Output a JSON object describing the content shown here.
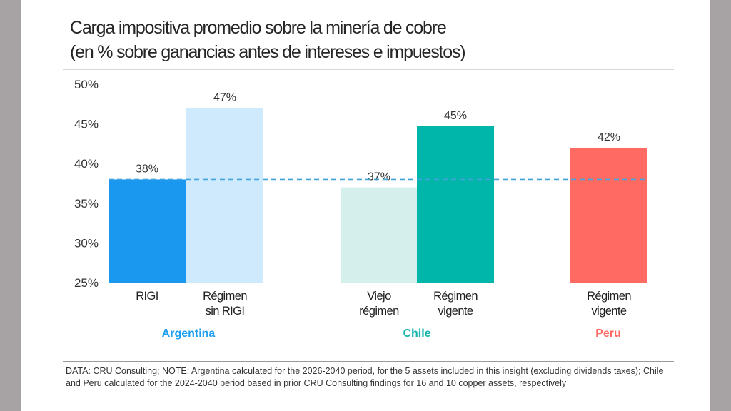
{
  "title": {
    "line1": "Carga impositiva promedio sobre la minería de cobre",
    "line2": "(en % sobre ganancias antes de intereses e impuestos)"
  },
  "footnote": "DATA: CRU Consulting; NOTE: Argentina calculated for the 2026-2040 period, for the 5 assets included in this insight (excluding dividends taxes); Chile and Peru calculated for the 2024-2040 period based in prior CRU Consulting findings for 16 and 10 copper assets, respectively",
  "chart_data": {
    "type": "bar",
    "ylim": [
      25,
      50
    ],
    "yticks": [
      "25%",
      "30%",
      "35%",
      "40%",
      "45%",
      "50%"
    ],
    "ytick_values": [
      25,
      30,
      35,
      40,
      45,
      50
    ],
    "grid": false,
    "reference_line": {
      "value": 38,
      "style": "dashed",
      "color": "#41a5dc"
    },
    "bars": [
      {
        "category": [
          "RIGI"
        ],
        "group": "Argentina",
        "value": 38,
        "label": "38%",
        "color": "#1a98f0"
      },
      {
        "category": [
          "Régimen",
          "sin RIGI"
        ],
        "group": "Argentina",
        "value": 47,
        "label": "47%",
        "color": "#cfeafd"
      },
      {
        "category": [
          "Viejo",
          "régimen"
        ],
        "group": "Chile",
        "value": 37,
        "label": "37%",
        "color": "#d4efec"
      },
      {
        "category": [
          "Régimen",
          "vigente"
        ],
        "group": "Chile",
        "value": 44.7,
        "label": "45%",
        "color": "#00b5aa"
      },
      {
        "category": [
          "Régimen",
          "vigente"
        ],
        "group": "Peru",
        "value": 42,
        "label": "42%",
        "color": "#ff6b63"
      }
    ],
    "groups": [
      {
        "name": "Argentina",
        "color": "#1e9ff0"
      },
      {
        "name": "Chile",
        "color": "#17b7ad"
      },
      {
        "name": "Peru",
        "color": "#ff6b63"
      }
    ]
  }
}
